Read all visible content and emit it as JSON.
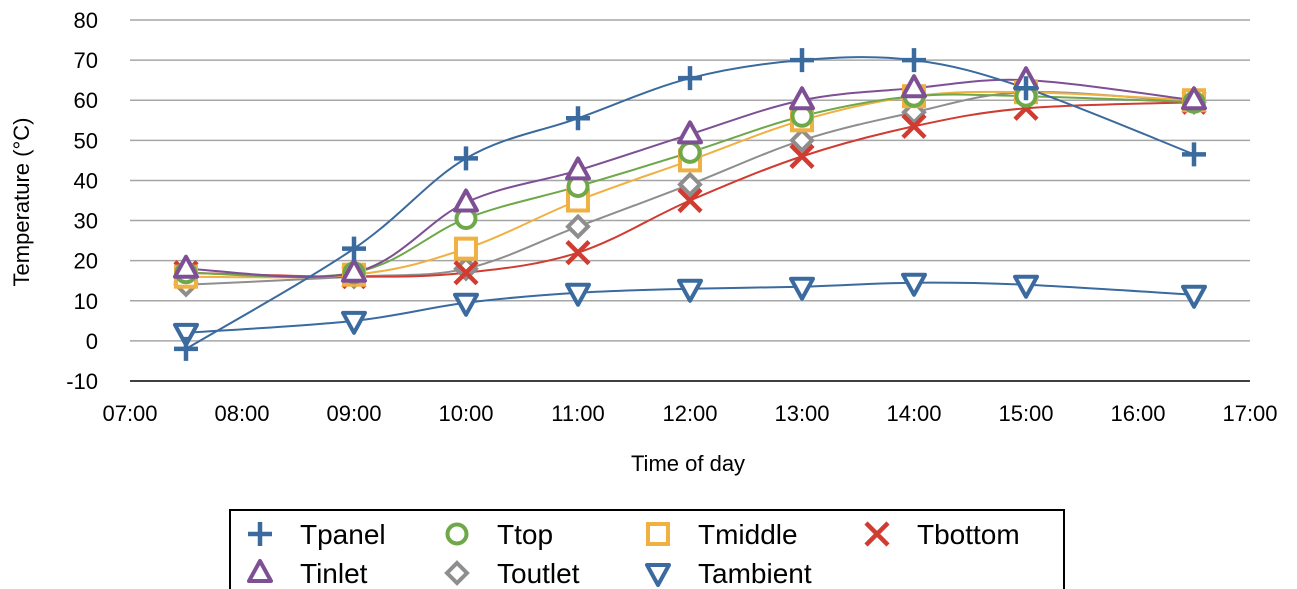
{
  "chart_data": {
    "type": "line",
    "xlabel": "Time of day",
    "ylabel": "Temperature (°C)",
    "xlim": [
      "07:00",
      "17:00"
    ],
    "ylim": [
      -10,
      80
    ],
    "x_ticks": [
      "07:00",
      "08:00",
      "09:00",
      "10:00",
      "11:00",
      "12:00",
      "13:00",
      "14:00",
      "15:00",
      "16:00",
      "17:00"
    ],
    "y_ticks": [
      "-10",
      "0",
      "10",
      "20",
      "30",
      "40",
      "50",
      "60",
      "70",
      "80"
    ],
    "grid": "horizontal",
    "legend_position": "bottom",
    "x": [
      "07:30",
      "09:00",
      "10:00",
      "11:00",
      "12:00",
      "13:00",
      "14:00",
      "15:00",
      "16:30"
    ],
    "series": [
      {
        "name": "Tpanel",
        "color": "#3A6A9E",
        "marker": "plus",
        "values": [
          -2,
          23,
          45.5,
          55.5,
          65.5,
          70,
          70,
          63,
          46.5
        ]
      },
      {
        "name": "Ttop",
        "color": "#6FA849",
        "marker": "circle",
        "values": [
          17,
          17,
          30.5,
          38.5,
          47,
          56,
          61,
          61,
          59.5
        ]
      },
      {
        "name": "Tmiddle",
        "color": "#F0B042",
        "marker": "square",
        "values": [
          16,
          16.5,
          23,
          35,
          45,
          55,
          61,
          62,
          60
        ]
      },
      {
        "name": "Tbottom",
        "color": "#D03C32",
        "marker": "x",
        "values": [
          17,
          16,
          17,
          22,
          35,
          46,
          53.5,
          58,
          59.5
        ]
      },
      {
        "name": "Tinlet",
        "color": "#7E4F94",
        "marker": "triangle-up",
        "values": [
          18,
          17,
          34.5,
          42.5,
          51.5,
          60,
          63,
          65,
          60
        ]
      },
      {
        "name": "Toutlet",
        "color": "#8E8E8E",
        "marker": "diamond",
        "values": [
          14,
          16,
          18,
          28.5,
          39,
          50,
          57,
          62,
          59.5
        ]
      },
      {
        "name": "Tambient",
        "color": "#3A6A9E",
        "marker": "triangle-down",
        "values": [
          2,
          5,
          9.5,
          12,
          13,
          13.5,
          14.5,
          14,
          11.5
        ]
      }
    ]
  }
}
